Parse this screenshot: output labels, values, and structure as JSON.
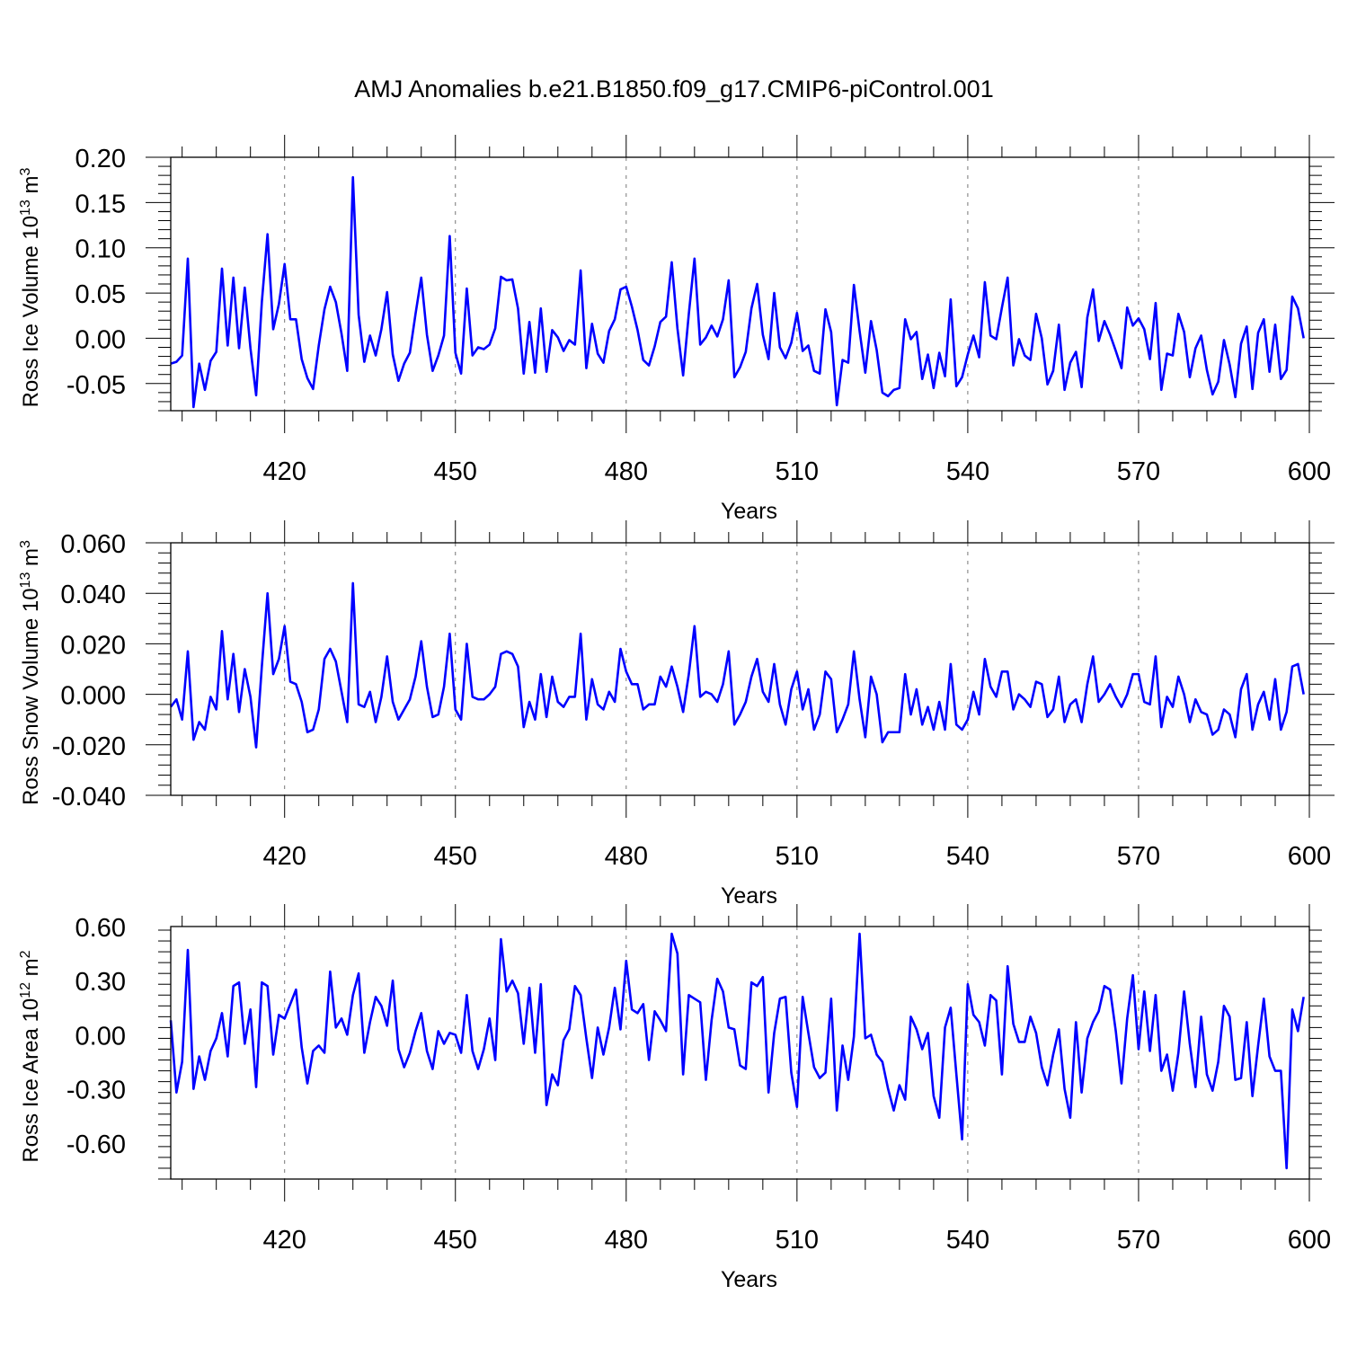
{
  "title": "AMJ Anomalies b.e21.B1850.f09_g17.CMIP6-piControl.001",
  "colors": {
    "line": "#0000ff",
    "axis": "#000000",
    "grid": "#777777"
  },
  "chart_data": [
    {
      "type": "line",
      "ylabel_main": "Ross Ice Volume 10",
      "ylabel_sup": "13",
      "ylabel_tail": " m",
      "ylabel_unit_sup": "3",
      "xlabel": "Years",
      "xlim": [
        400,
        600
      ],
      "ylim": [
        -0.08,
        0.2
      ],
      "yticks": [
        0.2,
        0.15,
        0.1,
        0.05,
        0.0,
        -0.05
      ],
      "ytick_labels": [
        "0.20",
        "0.15",
        "0.10",
        "0.05",
        "0.00",
        "-0.05"
      ],
      "xticks": [
        420,
        450,
        480,
        510,
        540,
        570,
        600
      ],
      "xtick_labels": [
        "420",
        "450",
        "480",
        "510",
        "540",
        "570",
        "600"
      ],
      "grid": "vertical dashed",
      "series": [
        {
          "x_start": 400,
          "values": [
            -0.028,
            -0.026,
            -0.019,
            0.088,
            -0.076,
            -0.028,
            -0.057,
            -0.025,
            -0.015,
            0.077,
            -0.008,
            0.067,
            -0.011,
            0.056,
            -0.011,
            -0.063,
            0.04,
            0.115,
            0.01,
            0.038,
            0.082,
            0.021,
            0.021,
            -0.023,
            -0.044,
            -0.056,
            -0.008,
            0.032,
            0.057,
            0.04,
            0.005,
            -0.036,
            0.178,
            0.026,
            -0.026,
            0.003,
            -0.019,
            0.01,
            0.051,
            -0.018,
            -0.047,
            -0.028,
            -0.016,
            0.027,
            0.067,
            0.004,
            -0.036,
            -0.019,
            0.003,
            0.113,
            -0.016,
            -0.039,
            0.055,
            -0.019,
            -0.01,
            -0.012,
            -0.007,
            0.011,
            0.068,
            0.064,
            0.065,
            0.033,
            -0.039,
            0.018,
            -0.038,
            0.033,
            -0.037,
            0.009,
            0.001,
            -0.014,
            -0.002,
            -0.007,
            0.075,
            -0.033,
            0.016,
            -0.017,
            -0.027,
            0.008,
            0.021,
            0.054,
            0.057,
            0.035,
            0.009,
            -0.024,
            -0.03,
            -0.009,
            0.018,
            0.024,
            0.084,
            0.011,
            -0.041,
            0.027,
            0.088,
            -0.007,
            0.001,
            0.014,
            0.002,
            0.021,
            0.064,
            -0.043,
            -0.032,
            -0.015,
            0.033,
            0.06,
            0.004,
            -0.023,
            0.05,
            -0.01,
            -0.022,
            -0.005,
            0.028,
            -0.014,
            -0.008,
            -0.036,
            -0.039,
            0.032,
            0.007,
            -0.074,
            -0.024,
            -0.027,
            0.059,
            0.008,
            -0.038,
            0.019,
            -0.013,
            -0.06,
            -0.064,
            -0.057,
            -0.055,
            0.021,
            -0.001,
            0.007,
            -0.045,
            -0.018,
            -0.055,
            -0.016,
            -0.042,
            0.043,
            -0.053,
            -0.043,
            -0.018,
            0.003,
            -0.021,
            0.062,
            0.003,
            -0.001,
            0.034,
            0.067,
            -0.03,
            -0.001,
            -0.019,
            -0.024,
            0.027,
            0.0,
            -0.051,
            -0.036,
            0.015,
            -0.057,
            -0.027,
            -0.015,
            -0.054,
            0.023,
            0.054,
            -0.003,
            0.019,
            0.004,
            -0.014,
            -0.033,
            0.034,
            0.014,
            0.022,
            0.01,
            -0.023,
            0.039,
            -0.057,
            -0.017,
            -0.019,
            0.027,
            0.007,
            -0.043,
            -0.011,
            0.003,
            -0.035,
            -0.062,
            -0.048,
            -0.002,
            -0.029,
            -0.065,
            -0.006,
            0.013,
            -0.056,
            0.006,
            0.021,
            -0.037,
            0.015,
            -0.045,
            -0.035,
            0.046,
            0.033,
            0.0
          ]
        }
      ]
    },
    {
      "type": "line",
      "ylabel_main": "Ross Snow Volume 10",
      "ylabel_sup": "13",
      "ylabel_tail": " m",
      "ylabel_unit_sup": "3",
      "xlabel": "Years",
      "xlim": [
        400,
        600
      ],
      "ylim": [
        -0.04,
        0.06
      ],
      "yticks": [
        0.06,
        0.04,
        0.02,
        0.0,
        -0.02,
        -0.04
      ],
      "ytick_labels": [
        "0.060",
        "0.040",
        "0.020",
        "0.000",
        "-0.020",
        "-0.040"
      ],
      "xticks": [
        420,
        450,
        480,
        510,
        540,
        570,
        600
      ],
      "xtick_labels": [
        "420",
        "450",
        "480",
        "510",
        "540",
        "570",
        "600"
      ],
      "grid": "vertical dashed",
      "series": [
        {
          "x_start": 400,
          "values": [
            -0.005,
            -0.002,
            -0.01,
            0.017,
            -0.018,
            -0.011,
            -0.014,
            -0.001,
            -0.006,
            0.025,
            -0.002,
            0.016,
            -0.007,
            0.01,
            -0.001,
            -0.021,
            0.011,
            0.04,
            0.008,
            0.014,
            0.027,
            0.005,
            0.004,
            -0.003,
            -0.015,
            -0.014,
            -0.006,
            0.014,
            0.018,
            0.013,
            0.001,
            -0.011,
            0.044,
            -0.004,
            -0.005,
            0.001,
            -0.011,
            -0.001,
            0.015,
            -0.003,
            -0.01,
            -0.006,
            -0.002,
            0.007,
            0.021,
            0.003,
            -0.009,
            -0.008,
            0.003,
            0.024,
            -0.006,
            -0.01,
            0.02,
            -0.001,
            -0.002,
            -0.002,
            0.0,
            0.003,
            0.016,
            0.017,
            0.016,
            0.011,
            -0.013,
            -0.003,
            -0.01,
            0.008,
            -0.009,
            0.007,
            -0.003,
            -0.005,
            -0.001,
            -0.001,
            0.024,
            -0.01,
            0.006,
            -0.004,
            -0.006,
            0.001,
            -0.003,
            0.018,
            0.009,
            0.004,
            0.004,
            -0.006,
            -0.004,
            -0.004,
            0.007,
            0.003,
            0.011,
            0.003,
            -0.007,
            0.008,
            0.027,
            -0.001,
            0.001,
            0.0,
            -0.003,
            0.004,
            0.017,
            -0.012,
            -0.008,
            -0.003,
            0.007,
            0.014,
            0.001,
            -0.003,
            0.012,
            -0.004,
            -0.012,
            0.002,
            0.009,
            -0.006,
            0.002,
            -0.014,
            -0.008,
            0.009,
            0.006,
            -0.015,
            -0.01,
            -0.004,
            0.017,
            -0.002,
            -0.017,
            0.007,
            0.0,
            -0.019,
            -0.015,
            -0.015,
            -0.015,
            0.008,
            -0.008,
            0.002,
            -0.012,
            -0.005,
            -0.014,
            -0.003,
            -0.014,
            0.012,
            -0.012,
            -0.014,
            -0.01,
            0.001,
            -0.008,
            0.014,
            0.003,
            -0.001,
            0.009,
            0.009,
            -0.006,
            0.0,
            -0.002,
            -0.005,
            0.005,
            0.004,
            -0.009,
            -0.006,
            0.007,
            -0.011,
            -0.004,
            -0.002,
            -0.011,
            0.004,
            0.015,
            -0.003,
            0.0,
            0.004,
            -0.001,
            -0.005,
            0.0,
            0.008,
            0.008,
            -0.003,
            -0.004,
            0.015,
            -0.013,
            -0.001,
            -0.005,
            0.007,
            0.0,
            -0.011,
            -0.002,
            -0.007,
            -0.008,
            -0.016,
            -0.014,
            -0.006,
            -0.008,
            -0.017,
            0.002,
            0.008,
            -0.014,
            -0.004,
            0.001,
            -0.01,
            0.006,
            -0.014,
            -0.007,
            0.011,
            0.012,
            0.0
          ]
        }
      ]
    },
    {
      "type": "line",
      "ylabel_main": "Ross Ice Area 10",
      "ylabel_sup": "12",
      "ylabel_tail": " m",
      "ylabel_unit_sup": "2",
      "xlabel": "Years",
      "xlim": [
        400,
        600
      ],
      "ylim": [
        -0.8,
        0.6
      ],
      "yticks": [
        0.6,
        0.3,
        0.0,
        -0.3,
        -0.6
      ],
      "ytick_labels": [
        "0.60",
        "0.30",
        "0.00",
        "-0.30",
        "-0.60"
      ],
      "xticks": [
        420,
        450,
        480,
        510,
        540,
        570,
        600
      ],
      "xtick_labels": [
        "420",
        "450",
        "480",
        "510",
        "540",
        "570",
        "600"
      ],
      "grid": "vertical dashed",
      "series": [
        {
          "x_start": 400,
          "values": [
            0.08,
            -0.32,
            -0.15,
            0.47,
            -0.3,
            -0.12,
            -0.25,
            -0.09,
            -0.02,
            0.12,
            -0.12,
            0.27,
            0.29,
            -0.05,
            0.14,
            -0.29,
            0.29,
            0.27,
            -0.11,
            0.11,
            0.09,
            0.17,
            0.25,
            -0.07,
            -0.27,
            -0.09,
            -0.06,
            -0.1,
            0.35,
            0.04,
            0.09,
            0.0,
            0.22,
            0.34,
            -0.1,
            0.07,
            0.21,
            0.16,
            0.05,
            0.3,
            -0.08,
            -0.18,
            -0.1,
            0.02,
            0.12,
            -0.09,
            -0.19,
            0.02,
            -0.05,
            0.01,
            0.0,
            -0.1,
            0.22,
            -0.09,
            -0.19,
            -0.08,
            0.09,
            -0.14,
            0.53,
            0.24,
            0.3,
            0.23,
            -0.05,
            0.26,
            -0.1,
            0.28,
            -0.39,
            -0.22,
            -0.28,
            -0.03,
            0.03,
            0.27,
            0.22,
            -0.02,
            -0.24,
            0.04,
            -0.11,
            0.04,
            0.26,
            0.03,
            0.41,
            0.14,
            0.12,
            0.17,
            -0.14,
            0.13,
            0.08,
            0.02,
            0.56,
            0.45,
            -0.22,
            0.22,
            0.2,
            0.18,
            -0.25,
            0.08,
            0.31,
            0.24,
            0.04,
            0.03,
            -0.17,
            -0.19,
            0.29,
            0.27,
            0.32,
            -0.32,
            0.01,
            0.2,
            0.21,
            -0.21,
            -0.4,
            0.21,
            0.01,
            -0.18,
            -0.24,
            -0.21,
            0.2,
            -0.42,
            -0.06,
            -0.25,
            -0.01,
            0.56,
            -0.02,
            0.0,
            -0.11,
            -0.15,
            -0.3,
            -0.42,
            -0.28,
            -0.36,
            0.1,
            0.03,
            -0.08,
            0.01,
            -0.34,
            -0.46,
            0.04,
            0.15,
            -0.22,
            -0.58,
            0.28,
            0.11,
            0.07,
            -0.06,
            0.22,
            0.19,
            -0.22,
            0.38,
            0.06,
            -0.04,
            -0.04,
            0.1,
            0.01,
            -0.18,
            -0.28,
            -0.11,
            0.03,
            -0.3,
            -0.46,
            0.07,
            -0.32,
            -0.02,
            0.07,
            0.13,
            0.27,
            0.25,
            0.02,
            -0.27,
            0.09,
            0.33,
            -0.08,
            0.24,
            -0.09,
            0.22,
            -0.2,
            -0.11,
            -0.31,
            -0.1,
            0.24,
            -0.05,
            -0.29,
            0.1,
            -0.22,
            -0.31,
            -0.15,
            0.16,
            0.1,
            -0.25,
            -0.24,
            0.07,
            -0.34,
            -0.06,
            0.2,
            -0.12,
            -0.2,
            -0.2,
            -0.74,
            0.14,
            0.02,
            0.21
          ]
        }
      ]
    }
  ]
}
